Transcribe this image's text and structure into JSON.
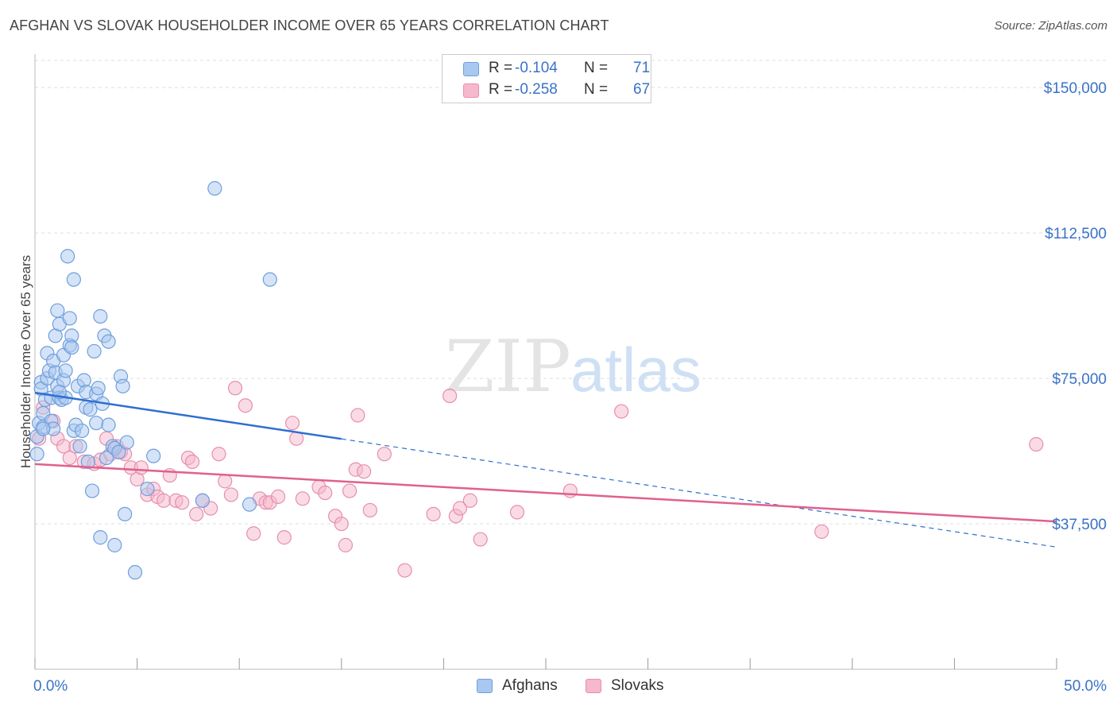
{
  "title": "AFGHAN VS SLOVAK HOUSEHOLDER INCOME OVER 65 YEARS CORRELATION CHART",
  "source": "Source: ZipAtlas.com",
  "watermark": {
    "zip": "ZIP",
    "atlas": "atlas"
  },
  "legend": {
    "afghans": {
      "r_label": "R =",
      "r_value": "-0.104",
      "n_label": "N =",
      "n_value": "71"
    },
    "slovaks": {
      "r_label": "R =",
      "r_value": "-0.258",
      "n_label": "N =",
      "n_value": "67"
    }
  },
  "bottom_legend": {
    "afghans": "Afghans",
    "slovaks": "Slovaks"
  },
  "colors": {
    "afghans_fill": "#a9c8f0",
    "afghans_stroke": "#6f9fdc",
    "afghans_line": "#2f6fcf",
    "slovaks_fill": "#f6b8cc",
    "slovaks_stroke": "#e68fac",
    "slovaks_line": "#e0608e",
    "tick_label": "#3a72c7",
    "grid": "#dddddd"
  },
  "chart_data": {
    "type": "scatter",
    "title": "AFGHAN VS SLOVAK HOUSEHOLDER INCOME OVER 65 YEARS CORRELATION CHART",
    "xlabel": "",
    "ylabel": "Householder Income Over 65 years",
    "xlim": [
      0,
      50
    ],
    "ylim": [
      0,
      157000
    ],
    "x_tick_labels": [
      {
        "value": 0,
        "label": "0.0%"
      },
      {
        "value": 50,
        "label": "50.0%"
      }
    ],
    "y_ticks": [
      {
        "value": 37500,
        "label": "$37,500"
      },
      {
        "value": 75000,
        "label": "$75,000"
      },
      {
        "value": 112500,
        "label": "$112,500"
      },
      {
        "value": 150000,
        "label": "$150,000"
      }
    ],
    "grid": true,
    "legend_position": "top-center",
    "series": [
      {
        "name": "Afghans",
        "r": -0.104,
        "n": 71,
        "trend": {
          "x0": 0,
          "y0": 71300,
          "x1": 15,
          "y1": 59400,
          "dashed_to_x": 50,
          "dashed_to_y": 31500
        },
        "points": [
          [
            0.1,
            55500
          ],
          [
            0.1,
            60000
          ],
          [
            0.2,
            63500
          ],
          [
            0.3,
            74000
          ],
          [
            0.3,
            72300
          ],
          [
            0.4,
            66000
          ],
          [
            0.4,
            62500
          ],
          [
            0.5,
            69500
          ],
          [
            0.6,
            81500
          ],
          [
            0.6,
            75000
          ],
          [
            0.7,
            77000
          ],
          [
            0.8,
            70000
          ],
          [
            0.8,
            64000
          ],
          [
            0.9,
            79500
          ],
          [
            0.9,
            62000
          ],
          [
            1.0,
            86000
          ],
          [
            1.0,
            76500
          ],
          [
            1.1,
            92500
          ],
          [
            1.1,
            73000
          ],
          [
            1.2,
            89000
          ],
          [
            1.2,
            70000
          ],
          [
            1.3,
            69500
          ],
          [
            1.4,
            81000
          ],
          [
            1.4,
            74500
          ],
          [
            1.5,
            77000
          ],
          [
            1.5,
            70000
          ],
          [
            1.6,
            106500
          ],
          [
            1.7,
            90500
          ],
          [
            1.7,
            83500
          ],
          [
            1.8,
            86000
          ],
          [
            1.8,
            83000
          ],
          [
            1.9,
            100500
          ],
          [
            1.9,
            61500
          ],
          [
            2.0,
            63000
          ],
          [
            2.1,
            73000
          ],
          [
            2.2,
            57500
          ],
          [
            2.3,
            61500
          ],
          [
            2.4,
            74500
          ],
          [
            2.5,
            71500
          ],
          [
            2.5,
            67500
          ],
          [
            2.6,
            53500
          ],
          [
            2.7,
            67000
          ],
          [
            2.8,
            46000
          ],
          [
            2.9,
            82000
          ],
          [
            3.0,
            71000
          ],
          [
            3.0,
            63500
          ],
          [
            3.1,
            72500
          ],
          [
            3.2,
            91000
          ],
          [
            3.2,
            34000
          ],
          [
            3.3,
            68500
          ],
          [
            3.4,
            86000
          ],
          [
            3.5,
            54500
          ],
          [
            3.6,
            63000
          ],
          [
            3.6,
            84500
          ],
          [
            3.8,
            57500
          ],
          [
            3.9,
            57000
          ],
          [
            3.9,
            32000
          ],
          [
            4.1,
            56000
          ],
          [
            4.2,
            75500
          ],
          [
            4.3,
            73000
          ],
          [
            4.4,
            40000
          ],
          [
            4.5,
            58500
          ],
          [
            4.9,
            25000
          ],
          [
            5.5,
            46500
          ],
          [
            5.8,
            55000
          ],
          [
            8.2,
            43500
          ],
          [
            8.8,
            124000
          ],
          [
            10.5,
            42500
          ],
          [
            11.5,
            100500
          ],
          [
            0.4,
            62000
          ],
          [
            1.2,
            71500
          ]
        ]
      },
      {
        "name": "Slovaks",
        "r": -0.258,
        "n": 67,
        "trend": {
          "x0": 0,
          "y0": 52900,
          "x1": 50,
          "y1": 38100
        },
        "points": [
          [
            0.2,
            59500
          ],
          [
            0.4,
            67500
          ],
          [
            0.9,
            64000
          ],
          [
            1.1,
            59500
          ],
          [
            1.4,
            57500
          ],
          [
            1.7,
            54500
          ],
          [
            2.0,
            57500
          ],
          [
            2.4,
            53500
          ],
          [
            2.9,
            53000
          ],
          [
            3.2,
            54000
          ],
          [
            3.5,
            59500
          ],
          [
            3.7,
            55500
          ],
          [
            4.0,
            57500
          ],
          [
            4.2,
            56000
          ],
          [
            4.4,
            55500
          ],
          [
            4.7,
            52000
          ],
          [
            5.0,
            49000
          ],
          [
            5.2,
            52000
          ],
          [
            5.5,
            45000
          ],
          [
            5.8,
            46500
          ],
          [
            6.0,
            44500
          ],
          [
            6.3,
            43500
          ],
          [
            6.6,
            50000
          ],
          [
            6.9,
            43500
          ],
          [
            7.2,
            43000
          ],
          [
            7.5,
            54500
          ],
          [
            7.7,
            53500
          ],
          [
            7.9,
            40000
          ],
          [
            8.2,
            43500
          ],
          [
            8.6,
            41500
          ],
          [
            9.0,
            55500
          ],
          [
            9.3,
            48500
          ],
          [
            9.6,
            45000
          ],
          [
            9.8,
            72500
          ],
          [
            10.3,
            68000
          ],
          [
            10.7,
            35000
          ],
          [
            11.0,
            44000
          ],
          [
            11.3,
            43000
          ],
          [
            11.5,
            43000
          ],
          [
            11.9,
            44500
          ],
          [
            12.2,
            34000
          ],
          [
            12.6,
            63500
          ],
          [
            12.8,
            59500
          ],
          [
            13.1,
            44000
          ],
          [
            13.9,
            47000
          ],
          [
            14.2,
            45500
          ],
          [
            14.7,
            39500
          ],
          [
            15.0,
            37500
          ],
          [
            15.2,
            32000
          ],
          [
            15.4,
            46000
          ],
          [
            15.7,
            51500
          ],
          [
            15.8,
            65500
          ],
          [
            16.1,
            51000
          ],
          [
            16.4,
            41000
          ],
          [
            17.1,
            55500
          ],
          [
            18.1,
            25500
          ],
          [
            19.5,
            40000
          ],
          [
            20.3,
            70500
          ],
          [
            20.6,
            39500
          ],
          [
            20.8,
            41500
          ],
          [
            21.3,
            43500
          ],
          [
            21.8,
            33500
          ],
          [
            23.6,
            40500
          ],
          [
            26.2,
            46000
          ],
          [
            28.7,
            66500
          ],
          [
            38.5,
            35500
          ],
          [
            49.0,
            58000
          ]
        ]
      }
    ]
  }
}
